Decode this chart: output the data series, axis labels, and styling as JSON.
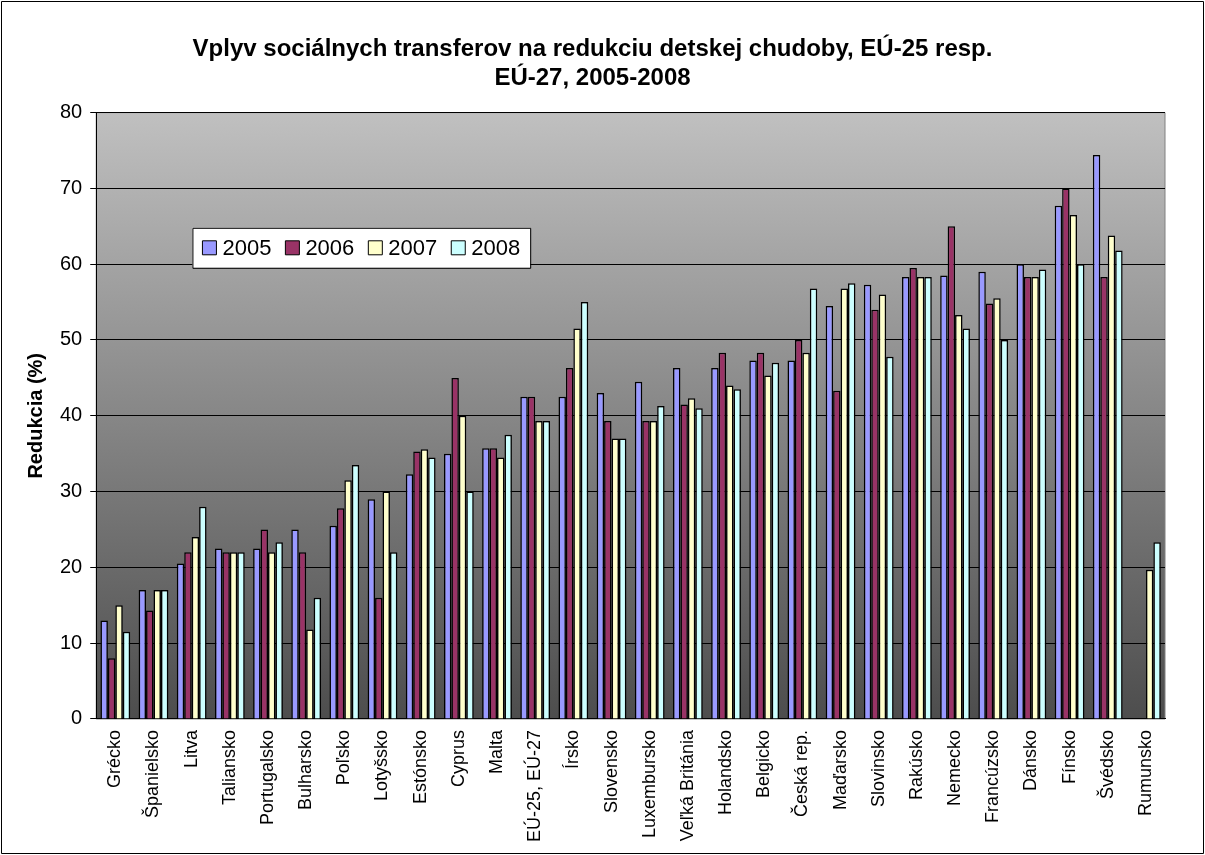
{
  "chart_data": {
    "type": "bar",
    "title": "Vplyv sociálnych transferov na redukciu detskej chudoby, EÚ-25 resp. EÚ-27, 2005-2008",
    "ylabel": "Redukcia (%)",
    "categories": [
      "Grécko",
      "Španielsko",
      "Litva",
      "Taliansko",
      "Portugalsko",
      "Bulharsko",
      "Poľsko",
      "Lotyšsko",
      "Estónsko",
      "Cyprus",
      "Malta",
      "EÚ-25, EÚ-27",
      "Írsko",
      "Slovensko",
      "Luxembursko",
      "Veľká Británia",
      "Holandsko",
      "Belgicko",
      "Česká rep.",
      "Maďarsko",
      "Slovinsko",
      "Rakúsko",
      "Nemecko",
      "Francúzsko",
      "Dánsko",
      "Fínsko",
      "Švédsko",
      "Rumunsko"
    ],
    "series": [
      {
        "name": "2005",
        "color": "#9999ff",
        "values": [
          13,
          17,
          20.5,
          22.5,
          22.5,
          25,
          25.5,
          29,
          32.3,
          35,
          35.7,
          42.5,
          42.5,
          43,
          44.5,
          46.3,
          46.3,
          47.3,
          47.3,
          54.5,
          57.3,
          58.3,
          58.5,
          59,
          60,
          67.7,
          74.4,
          null
        ]
      },
      {
        "name": "2006",
        "color": "#993366",
        "values": [
          8,
          14.3,
          22,
          22,
          25,
          22,
          27.8,
          16,
          35.3,
          45,
          35.7,
          42.5,
          46.3,
          39.3,
          39.3,
          41.5,
          48.3,
          48.3,
          50,
          43.3,
          54,
          59.5,
          65,
          54.8,
          58.3,
          70,
          58.3,
          null
        ]
      },
      {
        "name": "2007",
        "color": "#ffffcc",
        "values": [
          15,
          17,
          24,
          22,
          22,
          11.8,
          31.5,
          30,
          35.6,
          40,
          34.5,
          39.3,
          51.5,
          37,
          39.3,
          42.3,
          44,
          45.3,
          48.3,
          56.8,
          56,
          58.3,
          53.3,
          55.5,
          58.3,
          66.5,
          63.8,
          19.7
        ]
      },
      {
        "name": "2008",
        "color": "#ccffff",
        "values": [
          11.5,
          17,
          28,
          22,
          23.3,
          16,
          33.5,
          22,
          34.5,
          30,
          37.5,
          39.3,
          55,
          37,
          41.3,
          41,
          43.5,
          47,
          56.8,
          57.5,
          47.8,
          58.3,
          51.5,
          50,
          59.3,
          60,
          61.8,
          23.3
        ]
      }
    ],
    "ylim": [
      0,
      80
    ],
    "yticks": [
      0,
      10,
      20,
      30,
      40,
      50,
      60,
      70,
      80
    ],
    "grid": "y",
    "legend": "top left"
  }
}
